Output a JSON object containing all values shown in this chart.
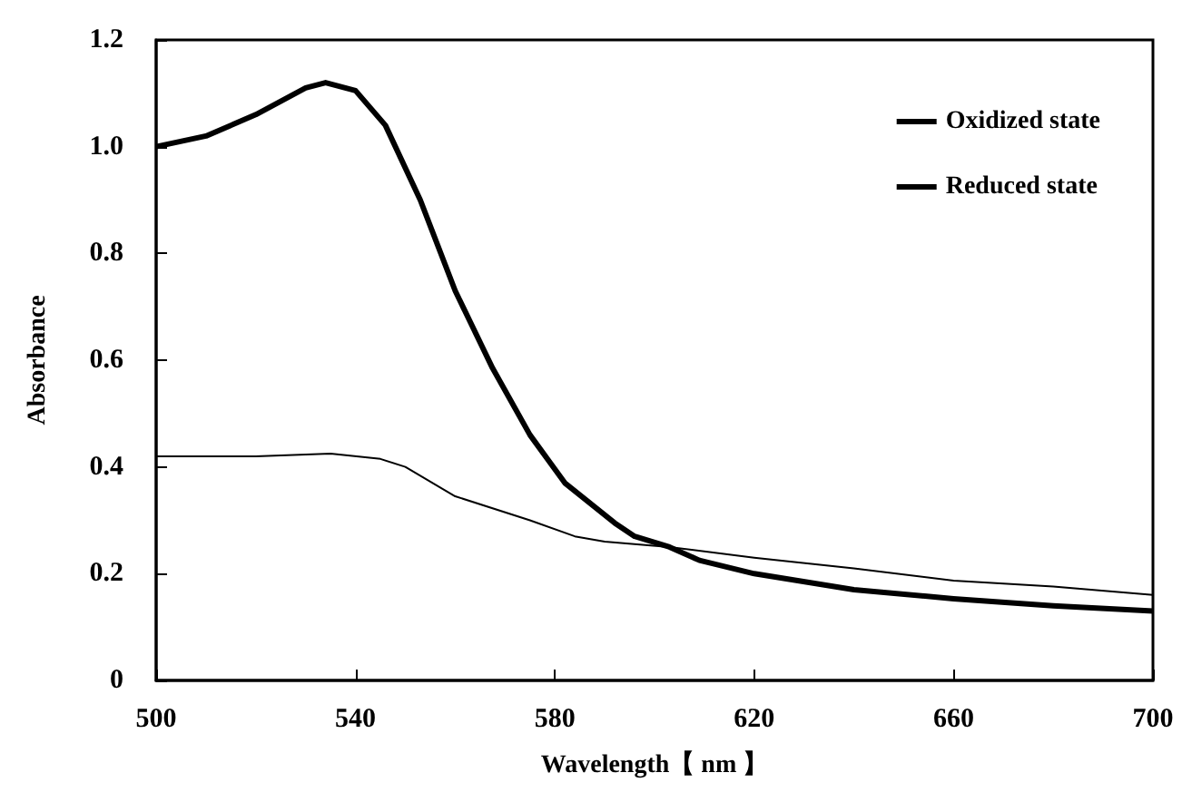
{
  "chart_data": {
    "type": "line",
    "xlabel": "Wavelength【 nm 】",
    "ylabel": "Absorbance",
    "xlim": [
      500,
      700
    ],
    "xticks": [
      500,
      540,
      580,
      620,
      660,
      700
    ],
    "ylim": [
      0,
      1.2
    ],
    "yticks": [
      0,
      {
        "value": 0.2,
        "label": "0.2"
      },
      {
        "value": 0.4,
        "label": "0.4"
      },
      {
        "value": 0.6,
        "label": "0.6"
      },
      {
        "value": 0.8,
        "label": "0.8"
      },
      {
        "value": 1,
        "label": "1.0"
      },
      {
        "value": 1.2,
        "label": "1.2"
      }
    ],
    "grid": false,
    "legend": "top right",
    "marker": "none",
    "line_style": "solid",
    "series": [
      {
        "name": "Oxidized state",
        "color": "#000000",
        "x": [
          500,
          510,
          520,
          530,
          534,
          540,
          546,
          553,
          560,
          567.5,
          575,
          582,
          592,
          596,
          603,
          609,
          620,
          640,
          660,
          680,
          700
        ],
        "values": [
          1.0,
          1.02,
          1.06,
          1.11,
          1.12,
          1.105,
          1.04,
          0.9,
          0.73,
          0.585,
          0.46,
          0.37,
          0.295,
          0.27,
          0.25,
          0.225,
          0.2,
          0.17,
          0.153,
          0.14,
          0.13
        ]
      },
      {
        "name": "Reduced state",
        "color": "#000000",
        "x": [
          500,
          520,
          535,
          545,
          550,
          560,
          575,
          584,
          590,
          603,
          620,
          640,
          660,
          680,
          700
        ],
        "values": [
          0.42,
          0.42,
          0.425,
          0.415,
          0.4,
          0.345,
          0.3,
          0.27,
          0.26,
          0.25,
          0.23,
          0.21,
          0.187,
          0.176,
          0.16
        ]
      }
    ]
  }
}
